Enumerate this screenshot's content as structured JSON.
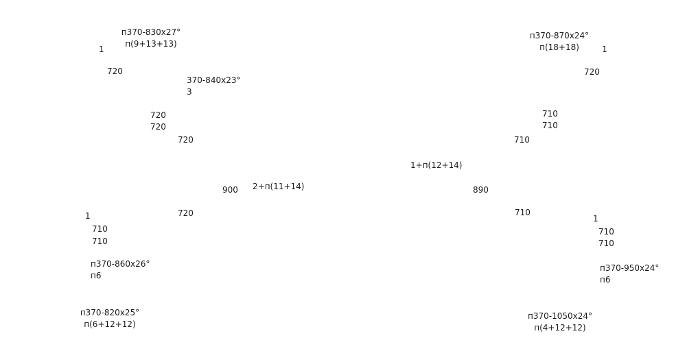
{
  "text_color": "#1a1a1a",
  "background": "#ffffff",
  "upper_left": {
    "spec_title": "п370-830x27°",
    "spec_sub": "п(9+13+13)",
    "count": "1",
    "dim_a": "720",
    "spec2_title": "370-840x23°",
    "spec2_count": "3",
    "dim_b": "720",
    "dim_c": "720",
    "dim_d": "720"
  },
  "upper_right": {
    "spec_title": "п370-870x24°",
    "spec_sub": "п(18+18)",
    "count": "1",
    "dim_a": "720",
    "dim_b": "710",
    "dim_c": "710",
    "dim_d": "710"
  },
  "middle": {
    "left_span": "900",
    "left_joint": "2+п(11+14)",
    "right_joint": "1+п(12+14)",
    "right_span": "890"
  },
  "lower_left": {
    "count": "1",
    "dim_inner": "720",
    "dim_a": "710",
    "dim_b": "710",
    "spec_title": "п370-860x26°",
    "spec_sub": "п6",
    "spec2_title": "п370-820x25°",
    "spec2_sub": "п(6+12+12)"
  },
  "lower_right": {
    "dim_inner": "710",
    "count": "1",
    "dim_a": "710",
    "dim_b": "710",
    "spec_title": "п370-950x24°",
    "spec_sub": "п6",
    "spec2_title": "п370-1050x24°",
    "spec2_sub": "п(4+12+12)"
  }
}
